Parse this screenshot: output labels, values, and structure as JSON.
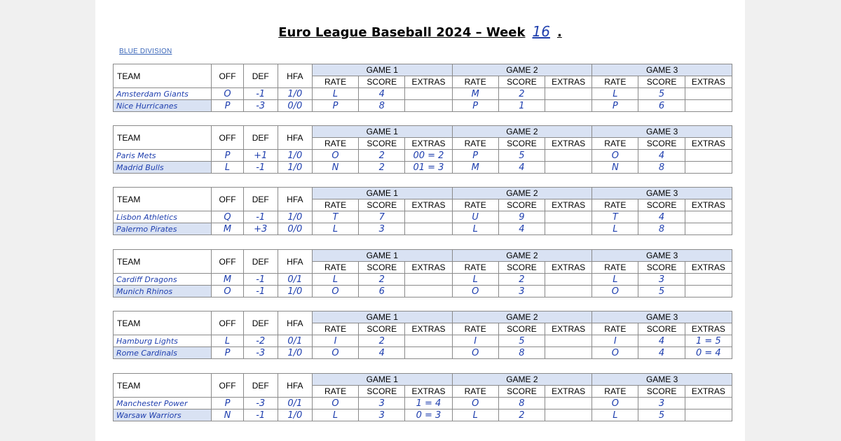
{
  "title": {
    "text": "Euro League Baseball 2024 – Week",
    "week": "16",
    "period": "."
  },
  "division": "BLUE DIVISION",
  "headers": {
    "team": "TEAM",
    "off": "OFF",
    "def": "DEF",
    "hfa": "HFA",
    "games": [
      "GAME 1",
      "GAME 2",
      "GAME 3"
    ],
    "rate": "RATE",
    "score": "SCORE",
    "extras": "EXTRAS"
  },
  "matchups": [
    {
      "rows": [
        {
          "team": "Amsterdam Giants",
          "off": "O",
          "def": "-1",
          "hfa": "1/0",
          "g": [
            [
              "L",
              "4",
              ""
            ],
            [
              "M",
              "2",
              ""
            ],
            [
              "L",
              "5",
              ""
            ]
          ]
        },
        {
          "team": "Nice Hurricanes",
          "off": "P",
          "def": "-3",
          "hfa": "0/0",
          "g": [
            [
              "P",
              "8",
              ""
            ],
            [
              "P",
              "1",
              ""
            ],
            [
              "P",
              "6",
              ""
            ]
          ]
        }
      ]
    },
    {
      "rows": [
        {
          "team": "Paris Mets",
          "off": "P",
          "def": "+1",
          "hfa": "1/0",
          "g": [
            [
              "O",
              "2",
              "00 = 2"
            ],
            [
              "P",
              "5",
              ""
            ],
            [
              "O",
              "4",
              ""
            ]
          ]
        },
        {
          "team": "Madrid Bulls",
          "off": "L",
          "def": "-1",
          "hfa": "1/0",
          "g": [
            [
              "N",
              "2",
              "01 = 3"
            ],
            [
              "M",
              "4",
              ""
            ],
            [
              "N",
              "8",
              ""
            ]
          ]
        }
      ]
    },
    {
      "rows": [
        {
          "team": "Lisbon Athletics",
          "off": "Q",
          "def": "-1",
          "hfa": "1/0",
          "g": [
            [
              "T",
              "7",
              ""
            ],
            [
              "U",
              "9",
              ""
            ],
            [
              "T",
              "4",
              ""
            ]
          ]
        },
        {
          "team": "Palermo Pirates",
          "off": "M",
          "def": "+3",
          "hfa": "0/0",
          "g": [
            [
              "L",
              "3",
              ""
            ],
            [
              "L",
              "4",
              ""
            ],
            [
              "L",
              "8",
              ""
            ]
          ]
        }
      ]
    },
    {
      "rows": [
        {
          "team": "Cardiff Dragons",
          "off": "M",
          "def": "-1",
          "hfa": "0/1",
          "g": [
            [
              "L",
              "2",
              ""
            ],
            [
              "L",
              "2",
              ""
            ],
            [
              "L",
              "3",
              ""
            ]
          ]
        },
        {
          "team": "Munich Rhinos",
          "off": "O",
          "def": "-1",
          "hfa": "1/0",
          "g": [
            [
              "O",
              "6",
              ""
            ],
            [
              "O",
              "3",
              ""
            ],
            [
              "O",
              "5",
              ""
            ]
          ]
        }
      ]
    },
    {
      "rows": [
        {
          "team": "Hamburg Lights",
          "off": "L",
          "def": "-2",
          "hfa": "0/1",
          "g": [
            [
              "I",
              "2",
              ""
            ],
            [
              "I",
              "5",
              ""
            ],
            [
              "I",
              "4",
              "1 = 5"
            ]
          ]
        },
        {
          "team": "Rome Cardinals",
          "off": "P",
          "def": "-3",
          "hfa": "1/0",
          "g": [
            [
              "O",
              "4",
              ""
            ],
            [
              "O",
              "8",
              ""
            ],
            [
              "O",
              "4",
              "0 = 4"
            ]
          ]
        }
      ]
    },
    {
      "rows": [
        {
          "team": "Manchester Power",
          "off": "P",
          "def": "-3",
          "hfa": "0/1",
          "g": [
            [
              "O",
              "3",
              "1 = 4"
            ],
            [
              "O",
              "8",
              ""
            ],
            [
              "O",
              "3",
              ""
            ]
          ]
        },
        {
          "team": "Warsaw Warriors",
          "off": "N",
          "def": "-1",
          "hfa": "1/0",
          "g": [
            [
              "L",
              "3",
              "0 = 3"
            ],
            [
              "L",
              "2",
              ""
            ],
            [
              "L",
              "5",
              ""
            ]
          ]
        }
      ]
    }
  ]
}
